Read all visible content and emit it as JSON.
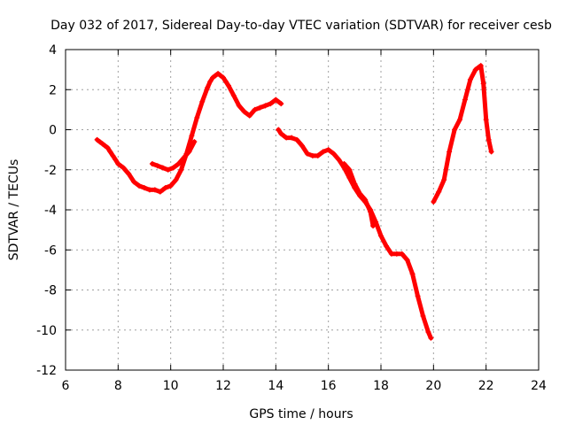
{
  "chart_data": {
    "type": "scatter",
    "title": "Day 032 of 2017, Sidereal Day-to-day VTEC variation (SDTVAR) for receiver cesb",
    "xlabel": "GPS time / hours",
    "ylabel": "SDTVAR / TECUs",
    "xlim": [
      6,
      24
    ],
    "ylim": [
      -12,
      4
    ],
    "x_ticks": [
      6,
      8,
      10,
      12,
      14,
      16,
      18,
      20,
      22,
      24
    ],
    "y_ticks": [
      -12,
      -10,
      -8,
      -6,
      -4,
      -2,
      0,
      2,
      4
    ],
    "x_tick_labels": [
      "6",
      "8",
      "10",
      "12",
      "14",
      "16",
      "18",
      "20",
      "22",
      "24"
    ],
    "y_tick_labels": [
      "-12",
      "-10",
      "-8",
      "-6",
      "-4",
      "-2",
      "0",
      "2",
      "4"
    ],
    "grid": true,
    "marker": "+",
    "color": "#ff0000",
    "series": [
      {
        "name": "segment-1",
        "x": [
          7.2,
          7.3,
          7.4,
          7.5,
          7.6,
          7.7,
          7.8,
          7.9,
          8.0,
          8.2,
          8.4,
          8.6,
          8.8,
          9.0,
          9.2,
          9.4,
          9.6,
          9.7,
          9.8,
          10.0,
          10.2,
          10.4,
          10.6,
          10.8,
          11.0,
          11.2,
          11.4,
          11.5,
          11.6,
          11.7,
          11.8,
          11.9,
          12.0,
          12.1,
          12.2,
          12.4,
          12.6,
          12.8,
          13.0,
          13.2,
          13.4,
          13.6,
          13.8,
          14.0,
          14.2
        ],
        "y": [
          -0.5,
          -0.6,
          -0.7,
          -0.8,
          -0.9,
          -1.1,
          -1.3,
          -1.5,
          -1.7,
          -1.9,
          -2.2,
          -2.6,
          -2.8,
          -2.9,
          -3.0,
          -3.0,
          -3.1,
          -3.0,
          -2.9,
          -2.8,
          -2.5,
          -2.0,
          -1.2,
          -0.3,
          0.6,
          1.4,
          2.1,
          2.4,
          2.6,
          2.7,
          2.8,
          2.7,
          2.6,
          2.4,
          2.2,
          1.7,
          1.2,
          0.9,
          0.7,
          1.0,
          1.1,
          1.2,
          1.3,
          1.5,
          1.3
        ]
      },
      {
        "name": "segment-2",
        "x": [
          9.3,
          9.5,
          9.7,
          9.9,
          10.1,
          10.3,
          10.5,
          10.7,
          10.9
        ],
        "y": [
          -1.7,
          -1.8,
          -1.9,
          -2.0,
          -1.9,
          -1.7,
          -1.4,
          -1.1,
          -0.6
        ]
      },
      {
        "name": "segment-3",
        "x": [
          14.1,
          14.2,
          14.4,
          14.6,
          14.8,
          15.0,
          15.2,
          15.4,
          15.6,
          15.8,
          16.0,
          16.2,
          16.4,
          16.6,
          16.8,
          17.0,
          17.2,
          17.4,
          17.6,
          17.8,
          18.0,
          18.2,
          18.4,
          18.6,
          18.8,
          19.0,
          19.2,
          19.4,
          19.6,
          19.8,
          19.9
        ],
        "y": [
          0.0,
          -0.2,
          -0.4,
          -0.4,
          -0.5,
          -0.8,
          -1.2,
          -1.3,
          -1.3,
          -1.1,
          -1.0,
          -1.2,
          -1.5,
          -1.9,
          -2.4,
          -2.9,
          -3.3,
          -3.6,
          -4.0,
          -4.6,
          -5.3,
          -5.8,
          -6.2,
          -6.2,
          -6.2,
          -6.5,
          -7.2,
          -8.3,
          -9.3,
          -10.1,
          -10.4
        ]
      },
      {
        "name": "segment-4",
        "x": [
          16.6,
          16.8,
          17.0,
          17.2,
          17.4,
          17.6,
          17.7
        ],
        "y": [
          -1.7,
          -2.0,
          -2.7,
          -3.2,
          -3.5,
          -4.1,
          -4.8
        ]
      },
      {
        "name": "segment-5",
        "x": [
          20.0,
          20.2,
          20.4,
          20.6,
          20.8,
          21.0,
          21.2,
          21.4,
          21.6,
          21.8,
          21.9,
          22.0,
          22.1,
          22.2
        ],
        "y": [
          -3.6,
          -3.1,
          -2.5,
          -1.1,
          0.0,
          0.5,
          1.5,
          2.5,
          3.0,
          3.2,
          2.3,
          0.5,
          -0.5,
          -1.1
        ]
      }
    ]
  }
}
